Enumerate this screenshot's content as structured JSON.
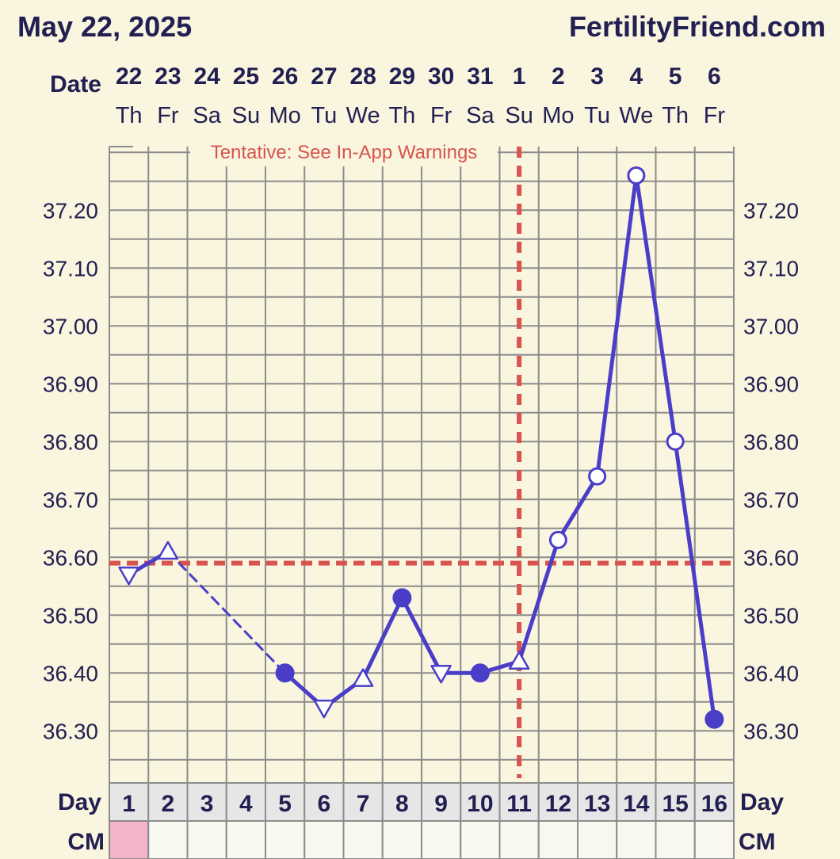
{
  "header": {
    "left_date": "May 22, 2025",
    "site": "FertilityFriend.com"
  },
  "labels": {
    "date_row": "Date",
    "day_row": "Day",
    "cm_row": "CM"
  },
  "colors": {
    "background": "#f9f5de",
    "grid": "#8c8c8c",
    "line": "#4a3ec9",
    "coverline": "#d9534f",
    "cm_fill": "#f3b3c8",
    "day_cell": "#e6e6e6",
    "text": "#221f52"
  },
  "chart_data": {
    "type": "line",
    "title": "",
    "annotation": "Tentative: See In-App Warnings",
    "y_ticks": [
      "36.30",
      "36.40",
      "36.50",
      "36.60",
      "36.70",
      "36.80",
      "36.90",
      "37.00",
      "37.10",
      "37.20"
    ],
    "ylim": [
      36.21,
      37.31
    ],
    "coverline": 36.59,
    "ovulation_day": 11,
    "dates": [
      "22",
      "23",
      "24",
      "25",
      "26",
      "27",
      "28",
      "29",
      "30",
      "31",
      "1",
      "2",
      "3",
      "4",
      "5",
      "6"
    ],
    "weekdays": [
      "Th",
      "Fr",
      "Sa",
      "Su",
      "Mo",
      "Tu",
      "We",
      "Th",
      "Fr",
      "Sa",
      "Su",
      "Mo",
      "Tu",
      "We",
      "Th",
      "Fr"
    ],
    "cycle_days": [
      "1",
      "2",
      "3",
      "4",
      "5",
      "6",
      "7",
      "8",
      "9",
      "10",
      "11",
      "12",
      "13",
      "14",
      "15",
      "16"
    ],
    "points": [
      {
        "day": 1,
        "temp": 36.57,
        "marker": "triangle-down"
      },
      {
        "day": 2,
        "temp": 36.61,
        "marker": "triangle-up"
      },
      {
        "day": 5,
        "temp": 36.4,
        "marker": "filled"
      },
      {
        "day": 6,
        "temp": 36.34,
        "marker": "triangle-down"
      },
      {
        "day": 7,
        "temp": 36.39,
        "marker": "triangle-up"
      },
      {
        "day": 8,
        "temp": 36.53,
        "marker": "filled"
      },
      {
        "day": 9,
        "temp": 36.4,
        "marker": "triangle-down"
      },
      {
        "day": 10,
        "temp": 36.4,
        "marker": "filled"
      },
      {
        "day": 11,
        "temp": 36.42,
        "marker": "triangle-up"
      },
      {
        "day": 12,
        "temp": 36.63,
        "marker": "open"
      },
      {
        "day": 13,
        "temp": 36.74,
        "marker": "open"
      },
      {
        "day": 14,
        "temp": 37.26,
        "marker": "open"
      },
      {
        "day": 15,
        "temp": 36.8,
        "marker": "open"
      },
      {
        "day": 16,
        "temp": 36.32,
        "marker": "filled"
      }
    ],
    "dashed_segments": [
      [
        2,
        5
      ]
    ],
    "cm": [
      {
        "day": 1,
        "type": "menstruation"
      }
    ]
  }
}
